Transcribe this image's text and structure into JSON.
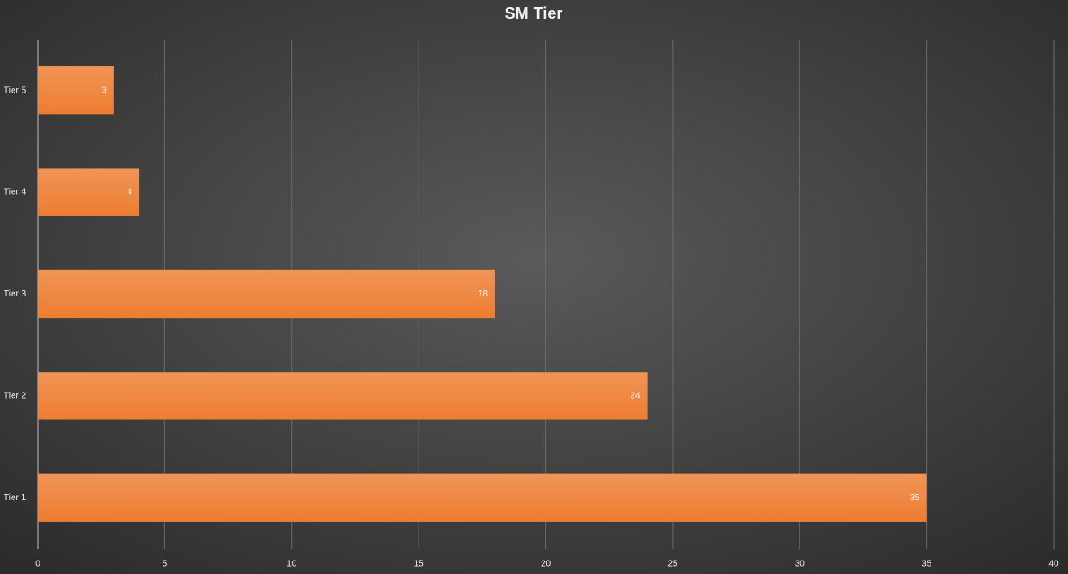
{
  "chart_data": {
    "type": "bar",
    "orientation": "horizontal",
    "title": "SM Tier",
    "categories": [
      "Tier 1",
      "Tier 2",
      "Tier 3",
      "Tier 4",
      "Tier 5"
    ],
    "values": [
      35,
      24,
      18,
      4,
      3
    ],
    "color": "#ed7d31",
    "xlim": [
      0,
      40
    ],
    "xticks": [
      0,
      5,
      10,
      15,
      20,
      25,
      30,
      35,
      40
    ],
    "grid": true
  }
}
